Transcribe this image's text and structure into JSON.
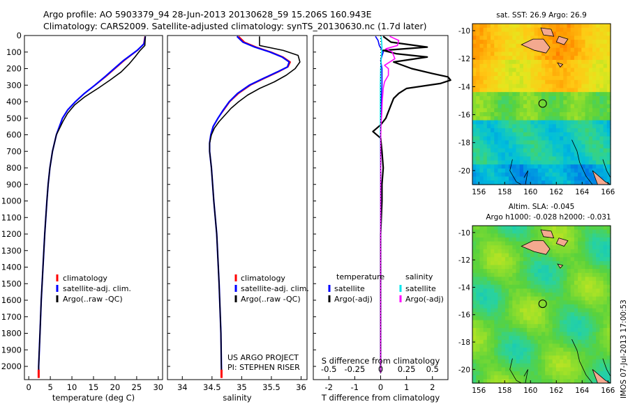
{
  "header": {
    "line1": "Argo profile: AO 5903379_94 28-Jun-2013 20130628_59 15.206S 160.943E",
    "line2": "Climatology: CARS2009. Satellite-adjusted climatology: synTS_20130630.nc (1.7d later)"
  },
  "credits": {
    "project": "US ARGO PROJECT",
    "pi": "PI: STEPHEN RISER",
    "stamp": "IMOS 07-Jul-2013 17:00:53"
  },
  "colors": {
    "climatology": "#ff0000",
    "satellite": "#0000ff",
    "argo": "#000000",
    "sal_satellite": "#00e5ee",
    "sal_argo": "#ff00ff",
    "land": "#f4a98f"
  },
  "chart_data": [
    {
      "id": "temperature",
      "type": "line",
      "xlabel": "temperature (deg C)",
      "ylabel": "",
      "xlim": [
        -1,
        31
      ],
      "ylim": [
        2080,
        0
      ],
      "xticks": [
        0,
        5,
        10,
        15,
        20,
        25,
        30
      ],
      "yticks": [
        0,
        100,
        200,
        300,
        400,
        500,
        600,
        700,
        800,
        900,
        1000,
        1100,
        1200,
        1300,
        1400,
        1500,
        1600,
        1700,
        1800,
        1900,
        2000
      ],
      "legend": [
        "climatology",
        "satellite-adj. clim.",
        "Argo(..raw -QC)"
      ],
      "series": [
        {
          "name": "climatology",
          "color": "#ff0000",
          "depth": [
            5,
            50,
            90,
            150,
            200,
            250,
            300,
            350,
            400,
            450,
            500,
            600,
            700,
            800,
            900,
            1000,
            1200,
            1400,
            1600,
            1800,
            2000,
            2040
          ],
          "values": [
            26.9,
            26.6,
            25.2,
            22.2,
            20.0,
            17.8,
            15.4,
            12.9,
            10.8,
            9.0,
            7.8,
            6.4,
            5.5,
            4.9,
            4.5,
            4.2,
            3.7,
            3.3,
            2.9,
            2.6,
            2.3,
            2.3
          ]
        },
        {
          "name": "satellite-adj. clim.",
          "color": "#0000ff",
          "depth": [
            5,
            50,
            90,
            150,
            200,
            250,
            300,
            350,
            400,
            450,
            500,
            600,
            700,
            800,
            900,
            1000,
            1200,
            1400,
            1600,
            1800,
            2000,
            2040
          ],
          "values": [
            27.0,
            26.7,
            25.1,
            22.0,
            19.8,
            17.6,
            15.3,
            12.9,
            10.8,
            9.0,
            7.8,
            6.4,
            5.5,
            4.9,
            4.5,
            4.2,
            3.7,
            3.3,
            2.9,
            2.6,
            2.3,
            2.3
          ]
        },
        {
          "name": "Argo(..raw -QC)",
          "color": "#000000",
          "depth": [
            5,
            60,
            90,
            130,
            170,
            220,
            270,
            320,
            370,
            420,
            470,
            520,
            600,
            700,
            800,
            900,
            1000,
            1200,
            1400,
            1600,
            1800,
            2000,
            2040
          ],
          "values": [
            27.0,
            26.9,
            25.8,
            24.6,
            23.3,
            21.4,
            18.8,
            16.0,
            13.0,
            10.6,
            9.0,
            7.9,
            6.4,
            5.5,
            4.9,
            4.5,
            4.2,
            3.7,
            3.3,
            2.9,
            2.6,
            2.3,
            2.3
          ]
        }
      ]
    },
    {
      "id": "salinity",
      "type": "line",
      "xlabel": "salinity",
      "ylabel": "",
      "xlim": [
        33.75,
        36.1
      ],
      "ylim": [
        2080,
        0
      ],
      "xticks": [
        34,
        34.5,
        35,
        35.5,
        36
      ],
      "legend": [
        "climatology",
        "satellite-adj. clim.",
        "Argo(..raw -QC)"
      ],
      "series": [
        {
          "name": "climatology",
          "color": "#ff0000",
          "depth": [
            5,
            40,
            70,
            100,
            130,
            160,
            190,
            220,
            260,
            300,
            350,
            400,
            450,
            500,
            550,
            600,
            650,
            700,
            800,
            1000,
            1200,
            1500,
            1800,
            2040
          ],
          "values": [
            34.95,
            35.05,
            35.25,
            35.5,
            35.7,
            35.82,
            35.78,
            35.62,
            35.38,
            35.15,
            34.95,
            34.8,
            34.7,
            34.6,
            34.52,
            34.48,
            34.46,
            34.46,
            34.49,
            34.53,
            34.58,
            34.62,
            34.65,
            34.66
          ]
        },
        {
          "name": "satellite-adj. clim.",
          "color": "#0000ff",
          "depth": [
            5,
            40,
            70,
            100,
            130,
            160,
            190,
            220,
            260,
            300,
            350,
            400,
            450,
            500,
            550,
            600,
            650,
            700,
            800,
            1000,
            1200,
            1500,
            1800,
            2040
          ],
          "values": [
            34.92,
            35.02,
            35.22,
            35.48,
            35.68,
            35.8,
            35.77,
            35.6,
            35.36,
            35.13,
            34.93,
            34.79,
            34.69,
            34.6,
            34.52,
            34.48,
            34.46,
            34.46,
            34.49,
            34.53,
            34.58,
            34.62,
            34.65,
            34.66
          ]
        },
        {
          "name": "Argo(..raw -QC)",
          "color": "#000000",
          "depth": [
            5,
            60,
            90,
            120,
            160,
            200,
            240,
            280,
            320,
            360,
            400,
            440,
            480,
            520,
            560,
            600,
            650,
            700,
            800,
            1000,
            1200,
            1500,
            1800,
            2040
          ],
          "values": [
            35.3,
            35.3,
            35.7,
            35.95,
            35.98,
            35.9,
            35.75,
            35.55,
            35.3,
            35.1,
            34.95,
            34.82,
            34.72,
            34.62,
            34.54,
            34.49,
            34.46,
            34.46,
            34.49,
            34.53,
            34.58,
            34.62,
            34.65,
            34.66
          ]
        }
      ]
    },
    {
      "id": "difference",
      "type": "line",
      "xlabel": "T difference from climatology",
      "xlabel2": "S difference from climatology",
      "ylabel": "",
      "xlim": [
        -2.6,
        2.6
      ],
      "ylim": [
        2080,
        0
      ],
      "xticks": [
        -2,
        -1,
        0,
        1,
        2
      ],
      "xticks_s": [
        "-0.5",
        "-0.25",
        "0",
        "0.25",
        "0.5"
      ],
      "legend": {
        "temperature_head": "temperature",
        "salinity_head": "salinity",
        "entries": [
          "satellite",
          "Argo(-adj)",
          "satellite",
          "Argo(-adj)"
        ]
      },
      "series": [
        {
          "name": "T satellite",
          "color": "#0000ff",
          "depth": [
            5,
            30,
            60,
            100,
            150,
            200,
            300,
            400,
            500,
            600,
            800,
            1000,
            1500,
            2040
          ],
          "values": [
            -0.2,
            -0.1,
            -0.05,
            0.1,
            0.0,
            0.05,
            0.05,
            0.02,
            0.0,
            0.0,
            0.0,
            0.0,
            0.0,
            0.0
          ]
        },
        {
          "name": "T Argo(-adj)",
          "color": "#000000",
          "depth": [
            5,
            40,
            70,
            90,
            110,
            130,
            160,
            200,
            230,
            250,
            270,
            290,
            320,
            350,
            380,
            420,
            460,
            500,
            540,
            580,
            620,
            700,
            800,
            900,
            1000,
            1200,
            1500,
            1800,
            2040
          ],
          "values": [
            0.1,
            0.4,
            1.8,
            0.1,
            0.6,
            1.8,
            0.5,
            1.2,
            2.0,
            2.6,
            2.7,
            2.3,
            1.0,
            0.7,
            0.5,
            0.4,
            0.3,
            0.2,
            0.0,
            -0.3,
            0.0,
            0.05,
            0.1,
            0.05,
            0.05,
            0.0,
            0.0,
            0.0,
            0.0
          ]
        },
        {
          "name": "S satellite",
          "color": "#00e5ee",
          "depth": [
            5,
            40,
            70,
            100,
            150,
            200,
            300,
            400,
            500,
            600,
            800,
            1000,
            1200,
            1500,
            1800,
            2040
          ],
          "values": [
            0.02,
            0.04,
            0.05,
            0.04,
            0.02,
            0.0,
            -0.01,
            -0.01,
            -0.01,
            -0.01,
            -0.005,
            0.0,
            0.0,
            0.0,
            0.0,
            0.0
          ]
        },
        {
          "name": "S Argo(-adj)",
          "color": "#ff00ff",
          "depth": [
            5,
            30,
            60,
            80,
            100,
            140,
            180,
            200,
            240,
            280,
            320,
            360,
            400,
            440,
            480,
            520,
            560,
            620,
            700,
            800,
            1000,
            1500,
            2040
          ],
          "values": [
            0.35,
            0.7,
            0.65,
            0.2,
            0.45,
            0.55,
            0.15,
            0.3,
            0.3,
            0.15,
            0.1,
            0.08,
            0.06,
            0.05,
            0.04,
            0.02,
            0.01,
            0.0,
            0.0,
            0.0,
            0.0,
            0.0,
            0.0
          ]
        }
      ]
    },
    {
      "id": "sst-map",
      "type": "heatmap",
      "title": "sat. SST: 26.9 Argo: 26.9",
      "xlim": [
        155.5,
        166.2
      ],
      "ylim": [
        -21,
        -9.5
      ],
      "xticks": [
        156,
        158,
        160,
        162,
        164,
        166
      ],
      "yticks": [
        -10,
        -12,
        -14,
        -16,
        -18,
        -20
      ],
      "marker": {
        "lon": 160.943,
        "lat": -15.206
      }
    },
    {
      "id": "sla-map",
      "type": "heatmap",
      "title": "Altim. SLA: -0.045",
      "subtitle": "Argo h1000: -0.028 h2000: -0.031",
      "xlim": [
        155.5,
        166.2
      ],
      "ylim": [
        -21,
        -9.5
      ],
      "xticks": [
        156,
        158,
        160,
        162,
        164,
        166
      ],
      "yticks": [
        -10,
        -12,
        -14,
        -16,
        -18,
        -20
      ],
      "marker": {
        "lon": 160.943,
        "lat": -15.206
      }
    }
  ]
}
